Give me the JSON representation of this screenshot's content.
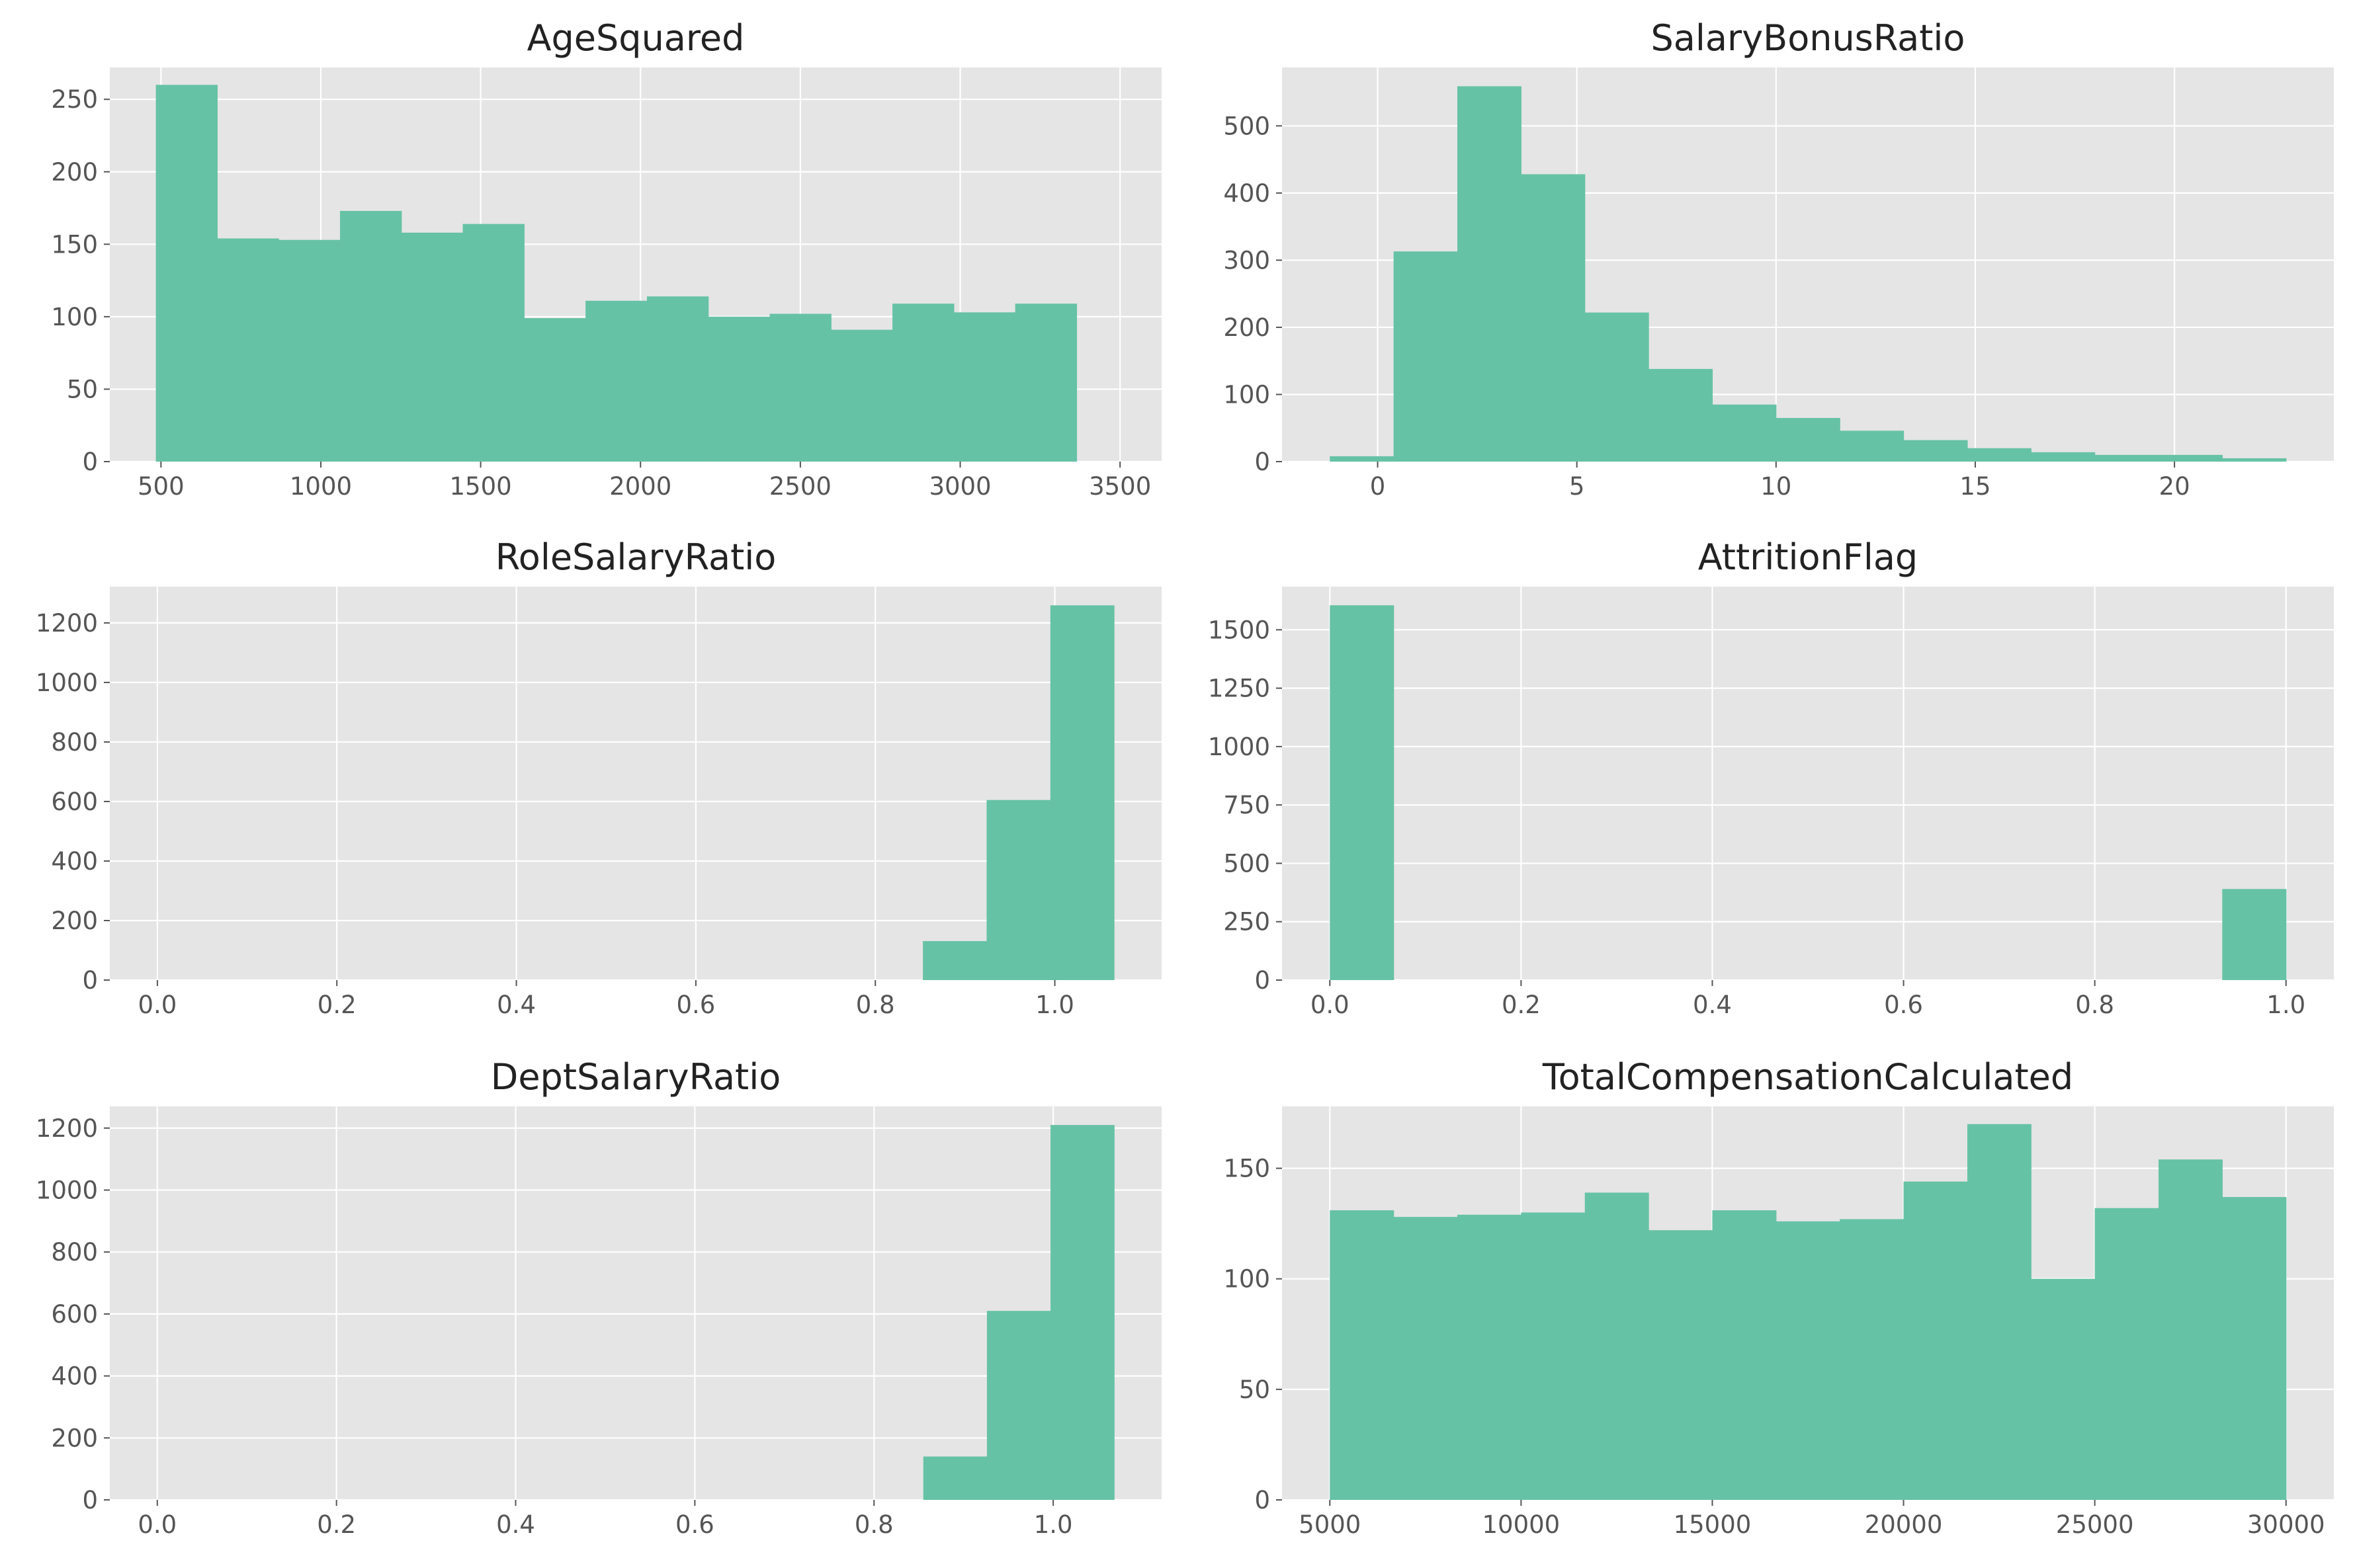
{
  "colors": {
    "bar": "#66c2a5",
    "plot_background": "#e5e5e5",
    "grid": "#ffffff",
    "tick_text": "#555555",
    "title_text": "#222222"
  },
  "chart_data": [
    {
      "type": "bar",
      "subtype": "histogram",
      "title": "AgeSquared",
      "xlabel": "",
      "ylabel": "",
      "bins": [
        [
          484,
          676,
          260
        ],
        [
          676,
          868,
          154
        ],
        [
          868,
          1060,
          153
        ],
        [
          1060,
          1252,
          173
        ],
        [
          1252,
          1444,
          158
        ],
        [
          1444,
          1636,
          164
        ],
        [
          1636,
          1828,
          99
        ],
        [
          1828,
          2020,
          111
        ],
        [
          2020,
          2212,
          114
        ],
        [
          2212,
          2404,
          100
        ],
        [
          2404,
          2596,
          102
        ],
        [
          2596,
          2788,
          91
        ],
        [
          2788,
          2980,
          109
        ],
        [
          2980,
          3172,
          103
        ],
        [
          3172,
          3364,
          109
        ]
      ],
      "xlim": [
        340,
        3630
      ],
      "ylim": [
        0,
        272
      ],
      "xticks": [
        500,
        1000,
        1500,
        2000,
        2500,
        3000,
        3500
      ],
      "xtick_labels": [
        "500",
        "1000",
        "1500",
        "2000",
        "2500",
        "3000",
        "3500"
      ],
      "yticks": [
        0,
        50,
        100,
        150,
        200,
        250
      ],
      "ytick_labels": [
        "0",
        "50",
        "100",
        "150",
        "200",
        "250"
      ],
      "grid": true
    },
    {
      "type": "bar",
      "subtype": "histogram",
      "title": "SalaryBonusRatio",
      "xlabel": "",
      "ylabel": "",
      "bins": [
        [
          -1.2,
          0.4,
          8
        ],
        [
          0.4,
          2.0,
          313
        ],
        [
          2.0,
          3.6,
          559
        ],
        [
          3.6,
          5.2,
          428
        ],
        [
          5.2,
          6.8,
          222
        ],
        [
          6.8,
          8.4,
          138
        ],
        [
          8.4,
          10.0,
          85
        ],
        [
          10.0,
          11.6,
          65
        ],
        [
          11.6,
          13.2,
          46
        ],
        [
          13.2,
          14.8,
          32
        ],
        [
          14.8,
          16.4,
          20
        ],
        [
          16.4,
          18.0,
          14
        ],
        [
          18.0,
          19.6,
          10
        ],
        [
          19.6,
          21.2,
          10
        ],
        [
          21.2,
          22.8,
          5
        ]
      ],
      "xlim": [
        -2.4,
        24.0
      ],
      "ylim": [
        0,
        587
      ],
      "xticks": [
        0,
        5,
        10,
        15,
        20
      ],
      "xtick_labels": [
        "0",
        "5",
        "10",
        "15",
        "20"
      ],
      "yticks": [
        0,
        100,
        200,
        300,
        400,
        500
      ],
      "ytick_labels": [
        "0",
        "100",
        "200",
        "300",
        "400",
        "500"
      ],
      "grid": true
    },
    {
      "type": "bar",
      "subtype": "histogram",
      "title": "RoleSalaryRatio",
      "xlabel": "",
      "ylabel": "",
      "bins": [
        [
          0.853,
          0.924,
          131
        ],
        [
          0.924,
          0.995,
          605
        ],
        [
          0.995,
          1.066,
          1259
        ]
      ],
      "xlim": [
        -0.053,
        1.119
      ],
      "ylim": [
        0,
        1322
      ],
      "xticks": [
        0.0,
        0.2,
        0.4,
        0.6,
        0.8,
        1.0
      ],
      "xtick_labels": [
        "0.0",
        "0.2",
        "0.4",
        "0.6",
        "0.8",
        "1.0"
      ],
      "yticks": [
        0,
        200,
        400,
        600,
        800,
        1000,
        1200
      ],
      "ytick_labels": [
        "0",
        "200",
        "400",
        "600",
        "800",
        "1000",
        "1200"
      ],
      "grid": true
    },
    {
      "type": "bar",
      "subtype": "histogram",
      "title": "AttritionFlag",
      "xlabel": "",
      "ylabel": "",
      "bins": [
        [
          0.0,
          0.0667,
          1605
        ],
        [
          0.9333,
          1.0,
          390
        ]
      ],
      "xlim": [
        -0.05,
        1.05
      ],
      "ylim": [
        0,
        1685
      ],
      "xticks": [
        0.0,
        0.2,
        0.4,
        0.6,
        0.8,
        1.0
      ],
      "xtick_labels": [
        "0.0",
        "0.2",
        "0.4",
        "0.6",
        "0.8",
        "1.0"
      ],
      "yticks": [
        0,
        250,
        500,
        750,
        1000,
        1250,
        1500
      ],
      "ytick_labels": [
        "0",
        "250",
        "500",
        "750",
        "1000",
        "1250",
        "1500"
      ],
      "grid": true
    },
    {
      "type": "bar",
      "subtype": "histogram",
      "title": "DeptSalaryRatio",
      "xlabel": "",
      "ylabel": "",
      "bins": [
        [
          0.855,
          0.926,
          140
        ],
        [
          0.926,
          0.997,
          610
        ],
        [
          0.997,
          1.068,
          1210
        ]
      ],
      "xlim": [
        -0.053,
        1.121
      ],
      "ylim": [
        0,
        1270
      ],
      "xticks": [
        0.0,
        0.2,
        0.4,
        0.6,
        0.8,
        1.0
      ],
      "xtick_labels": [
        "0.0",
        "0.2",
        "0.4",
        "0.6",
        "0.8",
        "1.0"
      ],
      "yticks": [
        0,
        200,
        400,
        600,
        800,
        1000,
        1200
      ],
      "ytick_labels": [
        "0",
        "200",
        "400",
        "600",
        "800",
        "1000",
        "1200"
      ],
      "grid": true
    },
    {
      "type": "bar",
      "subtype": "histogram",
      "title": "TotalCompensationCalculated",
      "xlabel": "",
      "ylabel": "",
      "bins": [
        [
          5000,
          6667,
          131
        ],
        [
          6667,
          8333,
          128
        ],
        [
          8333,
          10000,
          129
        ],
        [
          10000,
          11667,
          130
        ],
        [
          11667,
          13333,
          139
        ],
        [
          13333,
          15000,
          122
        ],
        [
          15000,
          16667,
          131
        ],
        [
          16667,
          18333,
          126
        ],
        [
          18333,
          20000,
          127
        ],
        [
          20000,
          21667,
          144
        ],
        [
          21667,
          23333,
          170
        ],
        [
          23333,
          25000,
          100
        ],
        [
          25000,
          26667,
          132
        ],
        [
          26667,
          28333,
          154
        ],
        [
          28333,
          30000,
          137
        ]
      ],
      "xlim": [
        3750,
        31250
      ],
      "ylim": [
        0,
        178
      ],
      "xticks": [
        5000,
        10000,
        15000,
        20000,
        25000,
        30000
      ],
      "xtick_labels": [
        "5000",
        "10000",
        "15000",
        "20000",
        "25000",
        "30000"
      ],
      "yticks": [
        0,
        50,
        100,
        150
      ],
      "ytick_labels": [
        "0",
        "50",
        "100",
        "150"
      ],
      "grid": true
    }
  ]
}
